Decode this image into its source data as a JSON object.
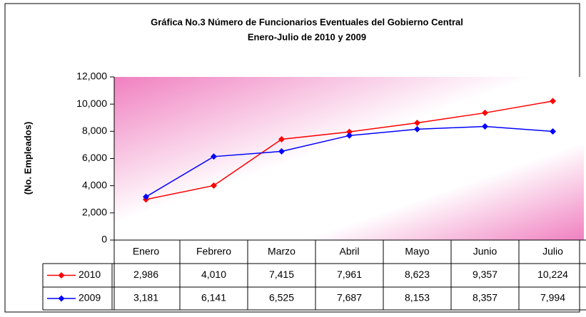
{
  "chart_data": {
    "type": "line",
    "title": "Gráfica No.3 Número de Funcionarios Eventuales del Gobierno Central",
    "subtitle": "Enero-Julio de 2010 y 2009",
    "y_label": "(No. Empleados)",
    "categories": [
      "Enero",
      "Febrero",
      "Marzo",
      "Abril",
      "Mayo",
      "Junio",
      "Julio"
    ],
    "series": [
      {
        "name": "2010",
        "color": "#ff0000",
        "values": [
          2986,
          4010,
          7415,
          7961,
          8623,
          9357,
          10224
        ],
        "value_labels": [
          "2,986",
          "4,010",
          "7,415",
          "7,961",
          "8,623",
          "9,357",
          "10,224"
        ]
      },
      {
        "name": "2009",
        "color": "#0000ff",
        "values": [
          3181,
          6141,
          6525,
          7687,
          8153,
          8357,
          7994
        ],
        "value_labels": [
          "3,181",
          "6,141",
          "6,525",
          "7,687",
          "8,153",
          "8,357",
          "7,994"
        ]
      }
    ],
    "ylim": [
      0,
      12000
    ],
    "yticks": [
      0,
      {
        "value": 2000,
        "label": "2,000"
      },
      {
        "value": 4000,
        "label": "4,000"
      },
      {
        "value": 6000,
        "label": "6,000"
      },
      {
        "value": 8000,
        "label": "8,000"
      },
      {
        "value": 10000,
        "label": "10,000"
      },
      {
        "value": 12000,
        "label": "12,000"
      }
    ]
  }
}
